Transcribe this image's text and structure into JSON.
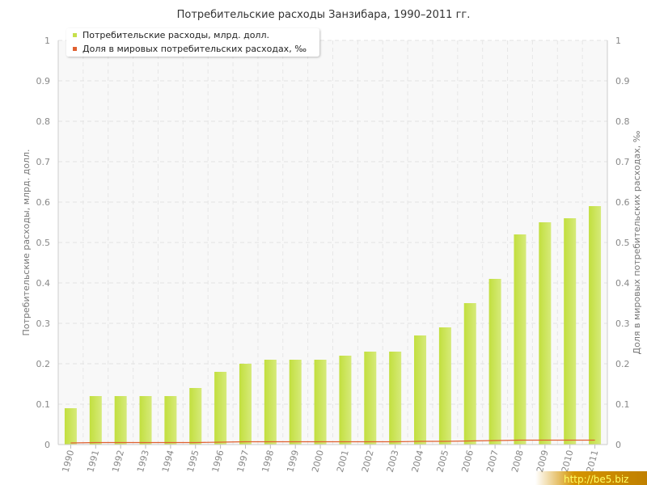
{
  "chart_data": {
    "type": "bar",
    "title": "Потребительские расходы Занзибара, 1990–2011 гг.",
    "ylabel": "Потребительские расходы, млрд. долл.",
    "y2label": "Доля в мировых потребительских расходах, ‰",
    "categories": [
      "1990",
      "1991",
      "1992",
      "1993",
      "1994",
      "1995",
      "1996",
      "1997",
      "1998",
      "1999",
      "2000",
      "2001",
      "2002",
      "2003",
      "2004",
      "2005",
      "2006",
      "2007",
      "2008",
      "2009",
      "2010",
      "2011"
    ],
    "series": [
      {
        "name": "Потребительские расходы, млрд. долл.",
        "type": "bar",
        "color": "#c6e04c",
        "values": [
          0.09,
          0.12,
          0.12,
          0.12,
          0.12,
          0.14,
          0.18,
          0.2,
          0.21,
          0.21,
          0.21,
          0.22,
          0.23,
          0.23,
          0.27,
          0.29,
          0.35,
          0.41,
          0.52,
          0.55,
          0.56,
          0.59
        ]
      },
      {
        "name": "Доля в мировых потребительских расходах, ‰",
        "type": "line",
        "axis": "right",
        "color": "#e06030",
        "values": [
          0.004,
          0.005,
          0.005,
          0.005,
          0.005,
          0.005,
          0.006,
          0.007,
          0.007,
          0.007,
          0.007,
          0.007,
          0.007,
          0.007,
          0.008,
          0.008,
          0.009,
          0.01,
          0.011,
          0.011,
          0.011,
          0.011
        ]
      }
    ],
    "ylim": [
      0,
      1
    ],
    "y2lim": [
      0,
      1
    ],
    "yticks": [
      "0",
      "0.1",
      "0.2",
      "0.3",
      "0.4",
      "0.5",
      "0.6",
      "0.7",
      "0.8",
      "0.9",
      "1"
    ],
    "grid": true,
    "legend_position": "top-left"
  },
  "watermark": "http://be5.biz"
}
